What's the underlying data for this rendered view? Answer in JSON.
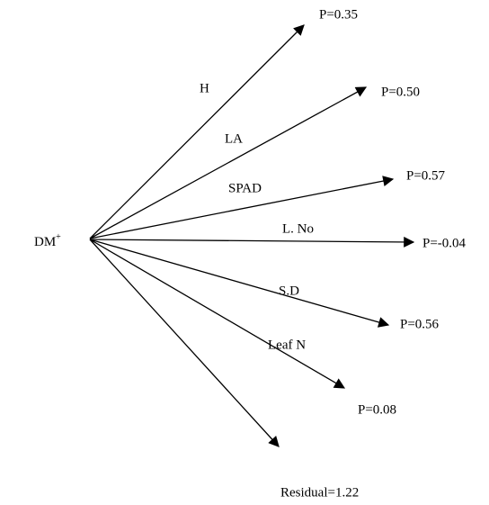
{
  "source": {
    "label": "DM",
    "superscript": "+"
  },
  "paths": [
    {
      "label": "H",
      "coefficient": "P=0.35"
    },
    {
      "label": "LA",
      "coefficient": "P=0.50"
    },
    {
      "label": "SPAD",
      "coefficient": "P=0.57"
    },
    {
      "label": "L. No",
      "coefficient": "P=-0.04"
    },
    {
      "label": "S.D",
      "coefficient": "P=0.56"
    },
    {
      "label": "Leaf N",
      "coefficient": "P=0.08"
    }
  ],
  "residual": {
    "label": "Residual=1.22"
  }
}
